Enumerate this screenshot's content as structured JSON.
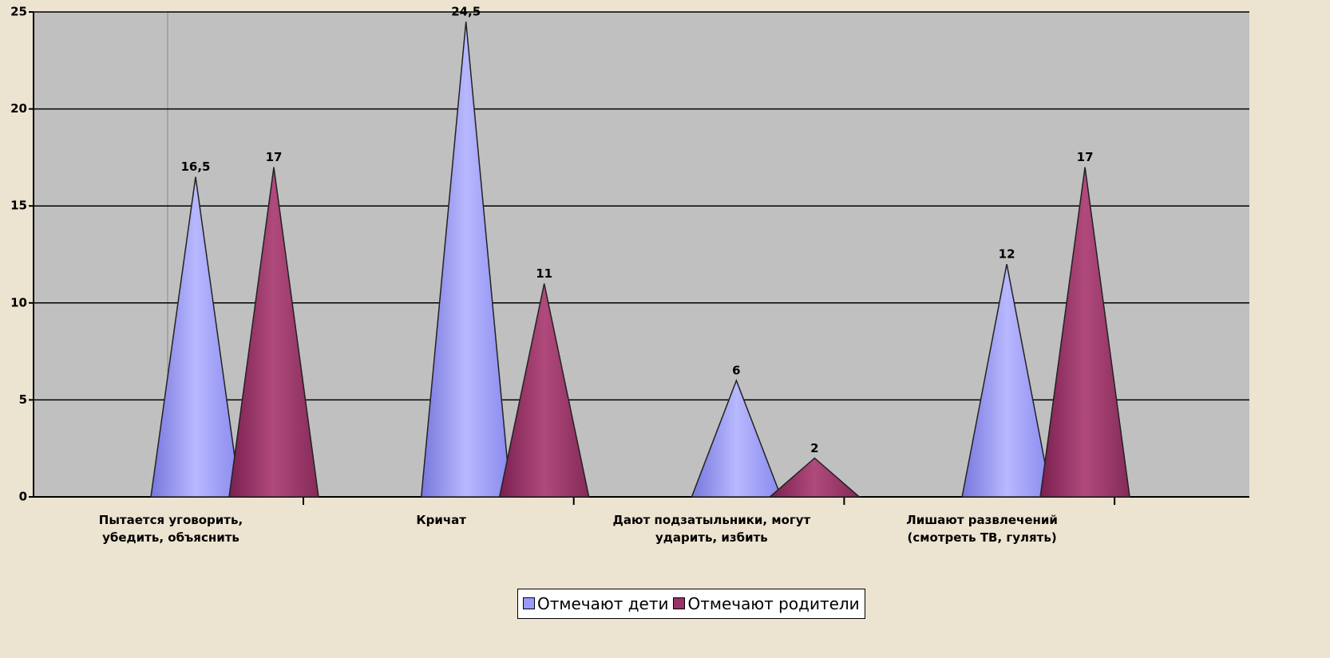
{
  "chart_data": {
    "type": "cone",
    "categories": [
      "Пытается уговорить, убедить, объяснить",
      "Кричат",
      "Дают подзатыльники, могут ударить, избить",
      "Лишают развлечений (смотреть ТВ, гулять)"
    ],
    "series": [
      {
        "name": "Отмечают дети",
        "color": "#9999ff",
        "values": [
          16.5,
          24.5,
          6,
          12
        ],
        "value_labels": [
          "16,5",
          "24,5",
          "6",
          "12"
        ]
      },
      {
        "name": "Отмечают родители",
        "color": "#993366",
        "values": [
          17,
          11,
          2,
          17
        ]
      }
    ],
    "ylim": [
      0,
      25
    ],
    "yticks": [
      0,
      5,
      10,
      15,
      20,
      25
    ],
    "grid": true
  }
}
